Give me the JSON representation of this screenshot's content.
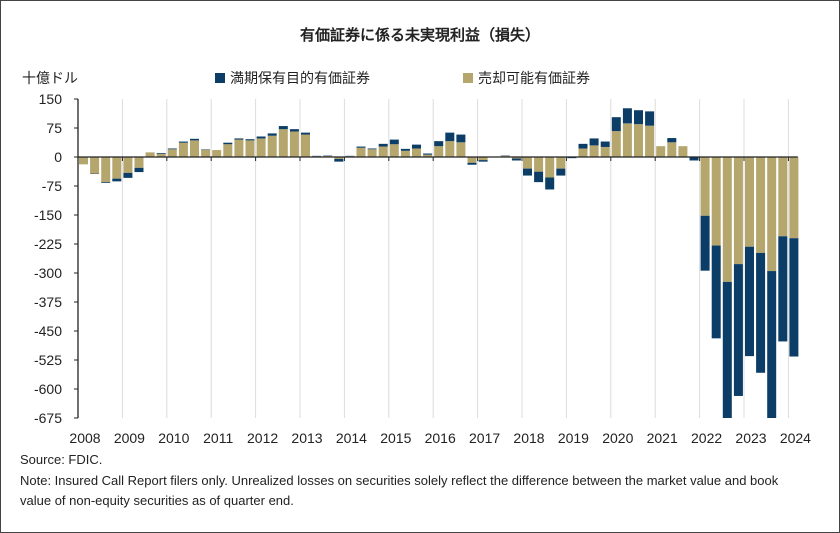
{
  "chart_data": {
    "type": "bar",
    "stacked": true,
    "title": "有価証券に係る未実現利益（損失）",
    "ylabel": "十億ドル",
    "xlabel": "",
    "ylim": [
      -675,
      150
    ],
    "yticks": [
      150,
      75,
      0,
      -75,
      -150,
      -225,
      -300,
      -375,
      -450,
      -525,
      -600,
      -675
    ],
    "xtick_labels": [
      "2008",
      "2009",
      "2010",
      "2011",
      "2012",
      "2013",
      "2014",
      "2015",
      "2016",
      "2017",
      "2018",
      "2019",
      "2020",
      "2021",
      "2022",
      "2023",
      "2024"
    ],
    "frequency": "quarterly",
    "start": "2008Q1",
    "legend_position": "top",
    "series": [
      {
        "name": "満期保有目的有価証券",
        "color": "#0b3d66",
        "values": [
          0,
          -1,
          -2,
          -7,
          -13,
          -11,
          0,
          2,
          2,
          3,
          4,
          1,
          0,
          4,
          3,
          3,
          5,
          6,
          8,
          6,
          5,
          1,
          1,
          -7,
          1,
          3,
          2,
          7,
          12,
          5,
          10,
          3,
          13,
          22,
          20,
          -5,
          -4,
          0,
          1,
          -5,
          -18,
          -27,
          -31,
          -18,
          -3,
          12,
          18,
          14,
          36,
          39,
          36,
          37,
          0,
          11,
          0,
          -8,
          -142,
          -240,
          -365,
          -341,
          -283,
          -310,
          -389,
          -272,
          -306
        ]
      },
      {
        "name": "売却可能有価証券",
        "color": "#b5a66d",
        "values": [
          -19,
          -43,
          -65,
          -56,
          -41,
          -28,
          12,
          8,
          20,
          37,
          43,
          19,
          18,
          33,
          45,
          43,
          48,
          55,
          72,
          66,
          58,
          2,
          3,
          -5,
          2,
          24,
          20,
          27,
          33,
          16,
          22,
          6,
          28,
          41,
          38,
          -15,
          -8,
          0,
          3,
          -4,
          -30,
          -38,
          -53,
          -30,
          0,
          22,
          30,
          26,
          67,
          87,
          85,
          81,
          28,
          38,
          28,
          -1,
          -152,
          -229,
          -323,
          -277,
          -232,
          -248,
          -295,
          -205,
          -210
        ]
      }
    ]
  },
  "legend": {
    "htm": "満期保有目的有価証券",
    "afs": "売却可能有価証券"
  },
  "footer": {
    "source": "Source: FDIC.",
    "note": "Note: Insured Call Report filers only. Unrealized losses on securities solely reflect the difference between the market value and book value of non-equity securities as of quarter end."
  }
}
